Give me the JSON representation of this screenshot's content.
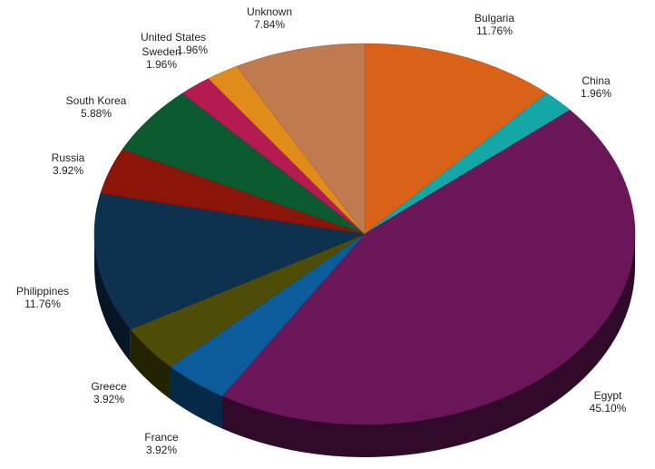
{
  "chart_data": {
    "type": "pie",
    "style": "3d",
    "legend": "none",
    "slices": [
      {
        "label": "Bulgaria",
        "value": 11.76,
        "value_label": "11.76%",
        "color": "#d96118"
      },
      {
        "label": "China",
        "value": 1.96,
        "value_label": "1.96%",
        "color": "#13a7a7"
      },
      {
        "label": "Egypt",
        "value": 45.1,
        "value_label": "45.10%",
        "color": "#6b1658"
      },
      {
        "label": "France",
        "value": 3.92,
        "value_label": "3.92%",
        "color": "#0c5c9c"
      },
      {
        "label": "Greece",
        "value": 3.92,
        "value_label": "3.92%",
        "color": "#4d4d08"
      },
      {
        "label": "Philippines",
        "value": 11.76,
        "value_label": "11.76%",
        "color": "#0e3150"
      },
      {
        "label": "Russia",
        "value": 3.92,
        "value_label": "3.92%",
        "color": "#8a1508"
      },
      {
        "label": "South Korea",
        "value": 5.88,
        "value_label": "5.88%",
        "color": "#0b5a30"
      },
      {
        "label": "Sweden",
        "value": 1.96,
        "value_label": "1.96%",
        "color": "#b51a52"
      },
      {
        "label": "United States",
        "value": 1.96,
        "value_label": "1.96%",
        "color": "#df8c1a"
      },
      {
        "label": "Unknown",
        "value": 7.84,
        "value_label": "7.84%",
        "color": "#c07a50"
      }
    ]
  }
}
